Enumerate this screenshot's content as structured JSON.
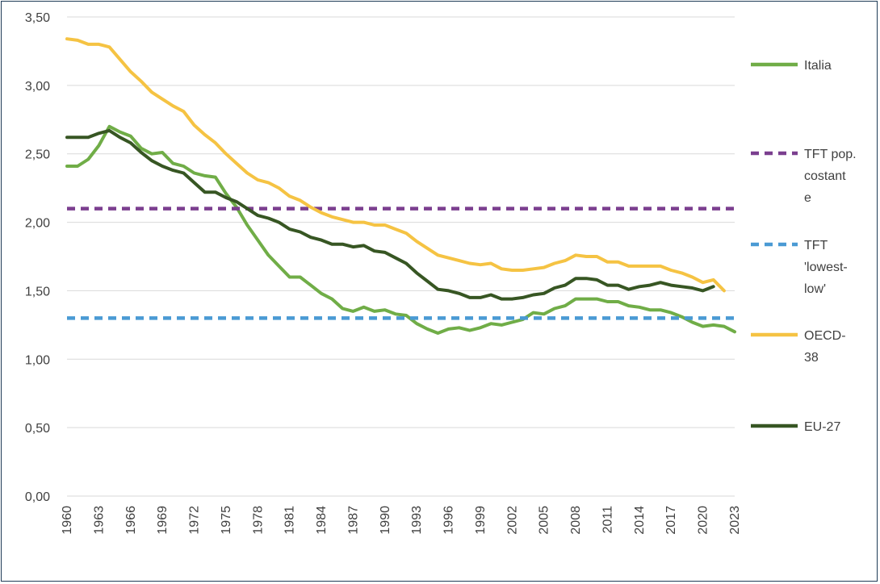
{
  "chart_data": {
    "type": "line",
    "title": "",
    "xlabel": "",
    "ylabel": "",
    "ylim": [
      0,
      3.5
    ],
    "yticks": [
      "0,00",
      "0,50",
      "1,00",
      "1,50",
      "2,00",
      "2,50",
      "3,00",
      "3,50"
    ],
    "xlim": [
      1960,
      2023
    ],
    "xticks": [
      "1960",
      "1963",
      "1966",
      "1969",
      "1972",
      "1975",
      "1978",
      "1981",
      "1984",
      "1987",
      "1990",
      "1993",
      "1996",
      "1999",
      "2002",
      "2005",
      "2008",
      "2011",
      "2014",
      "2017",
      "2020",
      "2023"
    ],
    "grid": "horizontal",
    "legend": "right",
    "series": [
      {
        "name": "Italia",
        "color": "#70ad47",
        "style": "solid",
        "x": [
          1960,
          1961,
          1962,
          1963,
          1964,
          1965,
          1966,
          1967,
          1968,
          1969,
          1970,
          1971,
          1972,
          1973,
          1974,
          1975,
          1976,
          1977,
          1978,
          1979,
          1980,
          1981,
          1982,
          1983,
          1984,
          1985,
          1986,
          1987,
          1988,
          1989,
          1990,
          1991,
          1992,
          1993,
          1994,
          1995,
          1996,
          1997,
          1998,
          1999,
          2000,
          2001,
          2002,
          2003,
          2004,
          2005,
          2006,
          2007,
          2008,
          2009,
          2010,
          2011,
          2012,
          2013,
          2014,
          2015,
          2016,
          2017,
          2018,
          2019,
          2020,
          2021,
          2022,
          2023
        ],
        "values": [
          2.41,
          2.41,
          2.46,
          2.56,
          2.7,
          2.66,
          2.63,
          2.54,
          2.5,
          2.51,
          2.43,
          2.41,
          2.36,
          2.34,
          2.33,
          2.21,
          2.11,
          1.98,
          1.87,
          1.76,
          1.68,
          1.6,
          1.6,
          1.54,
          1.48,
          1.44,
          1.37,
          1.35,
          1.38,
          1.35,
          1.36,
          1.33,
          1.32,
          1.26,
          1.22,
          1.19,
          1.22,
          1.23,
          1.21,
          1.23,
          1.26,
          1.25,
          1.27,
          1.29,
          1.34,
          1.33,
          1.37,
          1.39,
          1.44,
          1.44,
          1.44,
          1.42,
          1.42,
          1.39,
          1.38,
          1.36,
          1.36,
          1.34,
          1.31,
          1.27,
          1.24,
          1.25,
          1.24,
          1.2
        ]
      },
      {
        "name": "TFT pop. costant e",
        "color": "#7b3f8f",
        "style": "dashed",
        "x": [
          1960,
          2023
        ],
        "values": [
          2.1,
          2.1
        ]
      },
      {
        "name": "TFT 'lowest-low'",
        "color": "#4a9ad4",
        "style": "dashed",
        "x": [
          1960,
          2023
        ],
        "values": [
          1.3,
          1.3
        ]
      },
      {
        "name": "OECD-38",
        "color": "#f5c343",
        "style": "solid",
        "x": [
          1960,
          1961,
          1962,
          1963,
          1964,
          1965,
          1966,
          1967,
          1968,
          1969,
          1970,
          1971,
          1972,
          1973,
          1974,
          1975,
          1976,
          1977,
          1978,
          1979,
          1980,
          1981,
          1982,
          1983,
          1984,
          1985,
          1986,
          1987,
          1988,
          1989,
          1990,
          1991,
          1992,
          1993,
          1994,
          1995,
          1996,
          1997,
          1998,
          1999,
          2000,
          2001,
          2002,
          2003,
          2004,
          2005,
          2006,
          2007,
          2008,
          2009,
          2010,
          2011,
          2012,
          2013,
          2014,
          2015,
          2016,
          2017,
          2018,
          2019,
          2020,
          2021,
          2022
        ],
        "values": [
          3.34,
          3.33,
          3.3,
          3.3,
          3.28,
          3.19,
          3.1,
          3.03,
          2.95,
          2.9,
          2.85,
          2.81,
          2.71,
          2.64,
          2.58,
          2.5,
          2.43,
          2.36,
          2.31,
          2.29,
          2.25,
          2.19,
          2.16,
          2.11,
          2.07,
          2.04,
          2.02,
          2.0,
          2.0,
          1.98,
          1.98,
          1.95,
          1.92,
          1.86,
          1.81,
          1.76,
          1.74,
          1.72,
          1.7,
          1.69,
          1.7,
          1.66,
          1.65,
          1.65,
          1.66,
          1.67,
          1.7,
          1.72,
          1.76,
          1.75,
          1.75,
          1.71,
          1.71,
          1.68,
          1.68,
          1.68,
          1.68,
          1.65,
          1.63,
          1.6,
          1.56,
          1.58,
          1.5
        ]
      },
      {
        "name": "EU-27",
        "color": "#375623",
        "style": "solid",
        "x": [
          1960,
          1961,
          1962,
          1963,
          1964,
          1965,
          1966,
          1967,
          1968,
          1969,
          1970,
          1971,
          1972,
          1973,
          1974,
          1975,
          1976,
          1977,
          1978,
          1979,
          1980,
          1981,
          1982,
          1983,
          1984,
          1985,
          1986,
          1987,
          1988,
          1989,
          1990,
          1991,
          1992,
          1993,
          1994,
          1995,
          1996,
          1997,
          1998,
          1999,
          2000,
          2001,
          2002,
          2003,
          2004,
          2005,
          2006,
          2007,
          2008,
          2009,
          2010,
          2011,
          2012,
          2013,
          2014,
          2015,
          2016,
          2017,
          2018,
          2019,
          2020,
          2021
        ],
        "values": [
          2.62,
          2.62,
          2.62,
          2.65,
          2.67,
          2.62,
          2.58,
          2.51,
          2.45,
          2.41,
          2.38,
          2.36,
          2.29,
          2.22,
          2.22,
          2.18,
          2.15,
          2.1,
          2.05,
          2.03,
          2.0,
          1.95,
          1.93,
          1.89,
          1.87,
          1.84,
          1.84,
          1.82,
          1.83,
          1.79,
          1.78,
          1.74,
          1.7,
          1.63,
          1.57,
          1.51,
          1.5,
          1.48,
          1.45,
          1.45,
          1.47,
          1.44,
          1.44,
          1.45,
          1.47,
          1.48,
          1.52,
          1.54,
          1.59,
          1.59,
          1.58,
          1.54,
          1.54,
          1.51,
          1.53,
          1.54,
          1.56,
          1.54,
          1.53,
          1.52,
          1.5,
          1.53
        ]
      }
    ],
    "legend_entries": [
      {
        "label_lines": [
          "Italia"
        ],
        "color": "#70ad47",
        "style": "solid"
      },
      {
        "label_lines": [
          "TFT pop.",
          "costant",
          "e"
        ],
        "color": "#7b3f8f",
        "style": "dashed"
      },
      {
        "label_lines": [
          "TFT",
          "'lowest-",
          "low'"
        ],
        "color": "#4a9ad4",
        "style": "dashed"
      },
      {
        "label_lines": [
          "OECD-",
          "38"
        ],
        "color": "#f5c343",
        "style": "solid"
      },
      {
        "label_lines": [
          "EU-27"
        ],
        "color": "#375623",
        "style": "solid"
      }
    ]
  }
}
